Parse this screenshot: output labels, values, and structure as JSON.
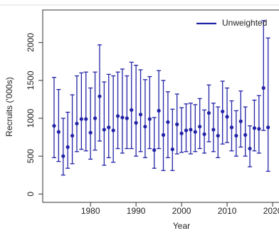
{
  "chart_data": {
    "type": "errorbar",
    "x_label": "Year",
    "y_label": "Recruits ('000s)",
    "x": [
      1972,
      1973,
      1974,
      1975,
      1976,
      1977,
      1978,
      1979,
      1980,
      1981,
      1982,
      1983,
      1984,
      1985,
      1986,
      1987,
      1988,
      1989,
      1990,
      1991,
      1992,
      1993,
      1994,
      1995,
      1996,
      1997,
      1998,
      1999,
      2000,
      2001,
      2002,
      2003,
      2004,
      2005,
      2006,
      2007,
      2008,
      2009,
      2010,
      2011,
      2012,
      2013,
      2014,
      2015,
      2016,
      2017,
      2018,
      2019
    ],
    "series": [
      {
        "name": "Unweighted",
        "color": "#2323a8",
        "values": [
          900,
          820,
          500,
          620,
          770,
          930,
          990,
          990,
          810,
          1000,
          1290,
          850,
          880,
          840,
          1030,
          1010,
          1000,
          1110,
          940,
          1050,
          890,
          990,
          580,
          1100,
          780,
          950,
          590,
          920,
          800,
          840,
          850,
          820,
          890,
          790,
          1070,
          850,
          770,
          1090,
          1020,
          880,
          770,
          960,
          780,
          600,
          870,
          860,
          1400,
          880
        ],
        "ci_low": [
          480,
          430,
          250,
          340,
          400,
          560,
          590,
          570,
          460,
          580,
          700,
          380,
          480,
          420,
          600,
          540,
          600,
          600,
          500,
          560,
          480,
          600,
          340,
          600,
          310,
          480,
          310,
          530,
          550,
          560,
          530,
          560,
          600,
          540,
          690,
          560,
          480,
          660,
          680,
          570,
          500,
          620,
          500,
          360,
          570,
          540,
          840,
          300
        ],
        "ci_high": [
          1540,
          1380,
          1000,
          1080,
          1310,
          1560,
          1600,
          1610,
          1400,
          1610,
          1970,
          1480,
          1580,
          1560,
          1610,
          1650,
          1560,
          1740,
          1700,
          1640,
          1510,
          1550,
          1010,
          1630,
          1500,
          1350,
          1120,
          1320,
          1140,
          1190,
          1200,
          1180,
          1260,
          1110,
          1440,
          1200,
          1150,
          1490,
          1400,
          1230,
          1100,
          1360,
          1150,
          900,
          1240,
          1300,
          2290,
          2060
        ]
      }
    ],
    "xlim": [
      1969.5,
      2021.4
    ],
    "ylim": [
      -110,
      2430
    ],
    "xticks": [
      1980,
      1990,
      2000,
      2010,
      2020
    ],
    "yticks": [
      0,
      500,
      1000,
      1500,
      2000
    ],
    "legend": "top-right"
  }
}
